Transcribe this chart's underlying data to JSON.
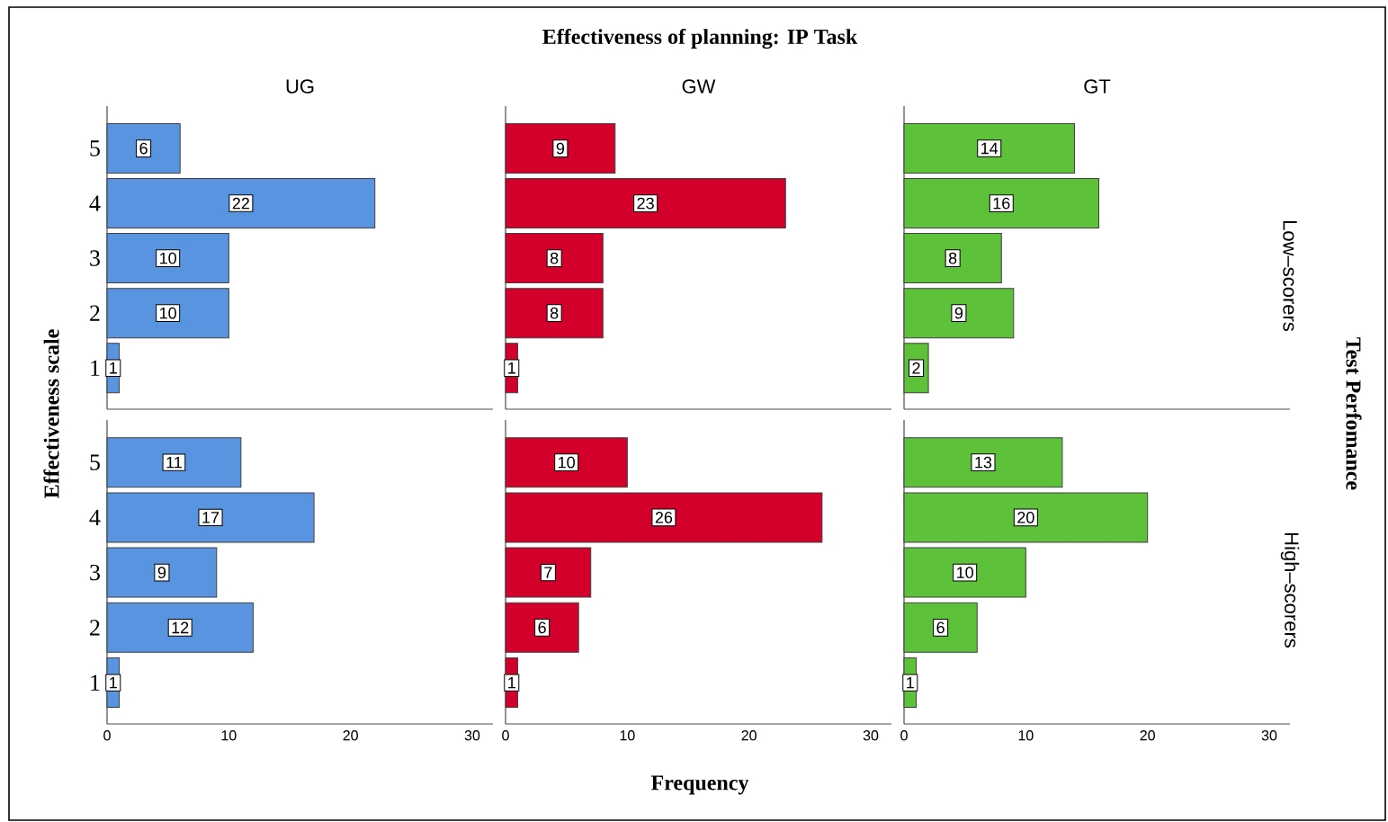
{
  "chart_data": [
    {
      "type": "bar",
      "orientation": "horizontal",
      "title": "UG",
      "ylabel": "Effectiveness scale",
      "annotations": [
        "Effectiveness of planning: IP Task",
        "Test Perfomance"
      ],
      "categories": [
        "5",
        "4",
        "3",
        "2",
        "1"
      ],
      "values": [
        6,
        22,
        10,
        10,
        1
      ],
      "color": "#5894e0",
      "xlim": [
        0,
        31.7
      ],
      "xticks": [
        0,
        10,
        20,
        30
      ],
      "data_labels": true,
      "tick_labels": "y"
    },
    {
      "type": "bar",
      "orientation": "horizontal",
      "title": "GW",
      "categories": [
        "5",
        "4",
        "3",
        "2",
        "1"
      ],
      "values": [
        9,
        23,
        8,
        8,
        1
      ],
      "color": "#d2002b",
      "xlim": [
        0,
        31.7
      ],
      "xticks": [
        0,
        10,
        20,
        30
      ],
      "data_labels": true,
      "tick_labels": false
    },
    {
      "type": "bar",
      "orientation": "horizontal",
      "title": "GT",
      "y2label": "Low–scorers",
      "categories": [
        "5",
        "4",
        "3",
        "2",
        "1"
      ],
      "values": [
        14,
        16,
        8,
        9,
        2
      ],
      "color": "#5ec13a",
      "xlim": [
        0,
        31.7
      ],
      "xticks": [
        0,
        10,
        20,
        30
      ],
      "data_labels": true,
      "tick_labels": false
    },
    {
      "type": "bar",
      "orientation": "horizontal",
      "categories": [
        "5",
        "4",
        "3",
        "2",
        "1"
      ],
      "values": [
        11,
        17,
        9,
        12,
        1
      ],
      "color": "#5894e0",
      "xlim": [
        0,
        31.7
      ],
      "xticks": [
        0,
        10,
        20,
        30
      ],
      "data_labels": true
    },
    {
      "type": "bar",
      "orientation": "horizontal",
      "xlabel": "Frequency",
      "categories": [
        "5",
        "4",
        "3",
        "2",
        "1"
      ],
      "values": [
        10,
        26,
        7,
        6,
        1
      ],
      "color": "#d2002b",
      "xlim": [
        0,
        31.7
      ],
      "xticks": [
        0,
        10,
        20,
        30
      ],
      "data_labels": true,
      "tick_labels": "x"
    },
    {
      "type": "bar",
      "orientation": "horizontal",
      "y2label": "High–scorers",
      "categories": [
        "5",
        "4",
        "3",
        "2",
        "1"
      ],
      "values": [
        13,
        20,
        10,
        6,
        1
      ],
      "color": "#5ec13a",
      "xlim": [
        0,
        31.7
      ],
      "xticks": [
        0,
        10,
        20,
        30
      ],
      "data_labels": true,
      "tick_labels": "x"
    }
  ]
}
